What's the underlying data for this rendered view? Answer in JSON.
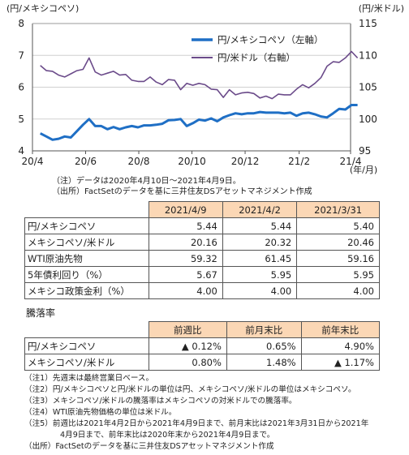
{
  "chart_data": {
    "type": "line",
    "ylabel_left": "(円/メキシコペソ)",
    "ylabel_right": "(円/米ドル)",
    "xlabel": "(年/月)",
    "x_ticks": [
      "20/4",
      "20/6",
      "20/8",
      "20/10",
      "20/12",
      "21/2",
      "21/4"
    ],
    "ylim_left": [
      4,
      8
    ],
    "yticks_left": [
      "4",
      "5",
      "6",
      "7",
      "8"
    ],
    "ylim_right": [
      95,
      115
    ],
    "yticks_right": [
      "95",
      "100",
      "105",
      "110",
      "115"
    ],
    "legend_position": "top-center",
    "series": [
      {
        "name": "円/メキシコペソ（左軸）",
        "axis": "left",
        "color": "#1f6fc5",
        "points": [
          [
            "2020-04-10",
            4.55
          ],
          [
            "2020-04-17",
            4.45
          ],
          [
            "2020-04-24",
            4.35
          ],
          [
            "2020-05-01",
            4.38
          ],
          [
            "2020-05-08",
            4.45
          ],
          [
            "2020-05-15",
            4.42
          ],
          [
            "2020-05-22",
            4.62
          ],
          [
            "2020-05-29",
            4.82
          ],
          [
            "2020-06-05",
            5.0
          ],
          [
            "2020-06-12",
            4.78
          ],
          [
            "2020-06-19",
            4.78
          ],
          [
            "2020-06-26",
            4.68
          ],
          [
            "2020-07-03",
            4.75
          ],
          [
            "2020-07-10",
            4.68
          ],
          [
            "2020-07-17",
            4.74
          ],
          [
            "2020-07-24",
            4.78
          ],
          [
            "2020-07-31",
            4.74
          ],
          [
            "2020-08-07",
            4.8
          ],
          [
            "2020-08-14",
            4.8
          ],
          [
            "2020-08-21",
            4.82
          ],
          [
            "2020-08-28",
            4.85
          ],
          [
            "2020-09-04",
            4.96
          ],
          [
            "2020-09-11",
            4.97
          ],
          [
            "2020-09-18",
            5.0
          ],
          [
            "2020-09-25",
            4.78
          ],
          [
            "2020-10-02",
            4.87
          ],
          [
            "2020-10-09",
            4.98
          ],
          [
            "2020-10-16",
            4.95
          ],
          [
            "2020-10-23",
            5.02
          ],
          [
            "2020-10-30",
            4.93
          ],
          [
            "2020-11-06",
            5.05
          ],
          [
            "2020-11-13",
            5.12
          ],
          [
            "2020-11-20",
            5.18
          ],
          [
            "2020-11-27",
            5.15
          ],
          [
            "2020-12-04",
            5.18
          ],
          [
            "2020-12-11",
            5.18
          ],
          [
            "2020-12-18",
            5.22
          ],
          [
            "2020-12-25",
            5.2
          ],
          [
            "2021-01-01",
            5.2
          ],
          [
            "2021-01-08",
            5.2
          ],
          [
            "2021-01-15",
            5.18
          ],
          [
            "2021-01-22",
            5.2
          ],
          [
            "2021-01-29",
            5.1
          ],
          [
            "2021-02-05",
            5.18
          ],
          [
            "2021-02-12",
            5.2
          ],
          [
            "2021-02-19",
            5.15
          ],
          [
            "2021-02-26",
            5.08
          ],
          [
            "2021-03-05",
            5.05
          ],
          [
            "2021-03-12",
            5.18
          ],
          [
            "2021-03-19",
            5.32
          ],
          [
            "2021-03-26",
            5.3
          ],
          [
            "2021-04-02",
            5.44
          ],
          [
            "2021-04-09",
            5.44
          ]
        ]
      },
      {
        "name": "円/米ドル（右軸）",
        "axis": "right",
        "color": "#6b4b8a",
        "points": [
          [
            "2020-04-10",
            108.4
          ],
          [
            "2020-04-17",
            107.6
          ],
          [
            "2020-04-24",
            107.5
          ],
          [
            "2020-05-01",
            106.9
          ],
          [
            "2020-05-08",
            106.6
          ],
          [
            "2020-05-15",
            107.1
          ],
          [
            "2020-05-22",
            107.6
          ],
          [
            "2020-05-29",
            107.8
          ],
          [
            "2020-06-05",
            109.6
          ],
          [
            "2020-06-12",
            107.4
          ],
          [
            "2020-06-19",
            106.9
          ],
          [
            "2020-06-26",
            107.2
          ],
          [
            "2020-07-03",
            107.5
          ],
          [
            "2020-07-10",
            106.9
          ],
          [
            "2020-07-17",
            107.0
          ],
          [
            "2020-07-24",
            106.1
          ],
          [
            "2020-07-31",
            105.9
          ],
          [
            "2020-08-07",
            105.9
          ],
          [
            "2020-08-14",
            106.6
          ],
          [
            "2020-08-21",
            105.8
          ],
          [
            "2020-08-28",
            105.4
          ],
          [
            "2020-09-04",
            106.2
          ],
          [
            "2020-09-11",
            106.1
          ],
          [
            "2020-09-18",
            104.6
          ],
          [
            "2020-09-25",
            105.6
          ],
          [
            "2020-10-02",
            105.3
          ],
          [
            "2020-10-09",
            105.6
          ],
          [
            "2020-10-16",
            105.4
          ],
          [
            "2020-10-23",
            104.7
          ],
          [
            "2020-10-30",
            104.6
          ],
          [
            "2020-11-06",
            103.4
          ],
          [
            "2020-11-13",
            104.6
          ],
          [
            "2020-11-20",
            103.8
          ],
          [
            "2020-11-27",
            104.1
          ],
          [
            "2020-12-04",
            104.2
          ],
          [
            "2020-12-11",
            104.0
          ],
          [
            "2020-12-18",
            103.3
          ],
          [
            "2020-12-25",
            103.6
          ],
          [
            "2021-01-01",
            103.2
          ],
          [
            "2021-01-08",
            103.9
          ],
          [
            "2021-01-15",
            103.8
          ],
          [
            "2021-01-22",
            103.8
          ],
          [
            "2021-01-29",
            104.7
          ],
          [
            "2021-02-05",
            105.4
          ],
          [
            "2021-02-12",
            104.9
          ],
          [
            "2021-02-19",
            105.6
          ],
          [
            "2021-02-26",
            106.5
          ],
          [
            "2021-03-05",
            108.3
          ],
          [
            "2021-03-12",
            109.0
          ],
          [
            "2021-03-19",
            108.9
          ],
          [
            "2021-03-26",
            109.6
          ],
          [
            "2021-04-02",
            110.6
          ],
          [
            "2021-04-09",
            109.6
          ]
        ]
      }
    ]
  },
  "notes_chart": {
    "line1": "（注）データは2020年4月10日～2021年4月9日。",
    "line2": "（出所）FactSetのデータを基に三井住友DSアセットマネジメント作成"
  },
  "table1": {
    "headers": [
      "2021/4/9",
      "2021/4/2",
      "2021/3/31"
    ],
    "rows": [
      {
        "label": "円/メキシコペソ",
        "values": [
          "5.44",
          "5.44",
          "5.40"
        ]
      },
      {
        "label": "メキシコペソ/米ドル",
        "values": [
          "20.16",
          "20.32",
          "20.46"
        ]
      },
      {
        "label": "WTI原油先物",
        "values": [
          "59.32",
          "61.45",
          "59.16"
        ]
      },
      {
        "label": "5年債利回り（%）",
        "values": [
          "5.67",
          "5.95",
          "5.95"
        ]
      },
      {
        "label": "メキシコ政策金利（%）",
        "values": [
          "4.00",
          "4.00",
          "4.00"
        ]
      }
    ]
  },
  "table2": {
    "title": "騰落率",
    "headers": [
      "前週比",
      "前月末比",
      "前年末比"
    ],
    "rows": [
      {
        "label": "円/メキシコペソ",
        "values": [
          "▲ 0.12%",
          "0.65%",
          "4.90%"
        ]
      },
      {
        "label": "メキシコペソ/米ドル",
        "values": [
          "0.80%",
          "1.48%",
          "▲ 1.17%"
        ]
      }
    ]
  },
  "footnotes": {
    "n1": "（注1）先週末は最終営業日ベース。",
    "n2": "（注2）円/メキシコペソと円/米ドルの単位は円、メキシコペソ/米ドルの単位はメキシコペソ。",
    "n3": "（注3）メキシコペソ/米ドルの騰落率はメキシコペソの対米ドルでの騰落率。",
    "n4": "（注4）WTI原油先物価格の単位は米ドル。",
    "n5a": "（注5）前週比は2021年4月2日から2021年4月9日まで、前月末比は2021年3月31日から2021年",
    "n5b": "4月9日まで、前年末比は2020年末から2021年4月9日まで。",
    "source": "（出所）FactSetのデータを基に三井住友DSアセットマネジメント作成"
  }
}
